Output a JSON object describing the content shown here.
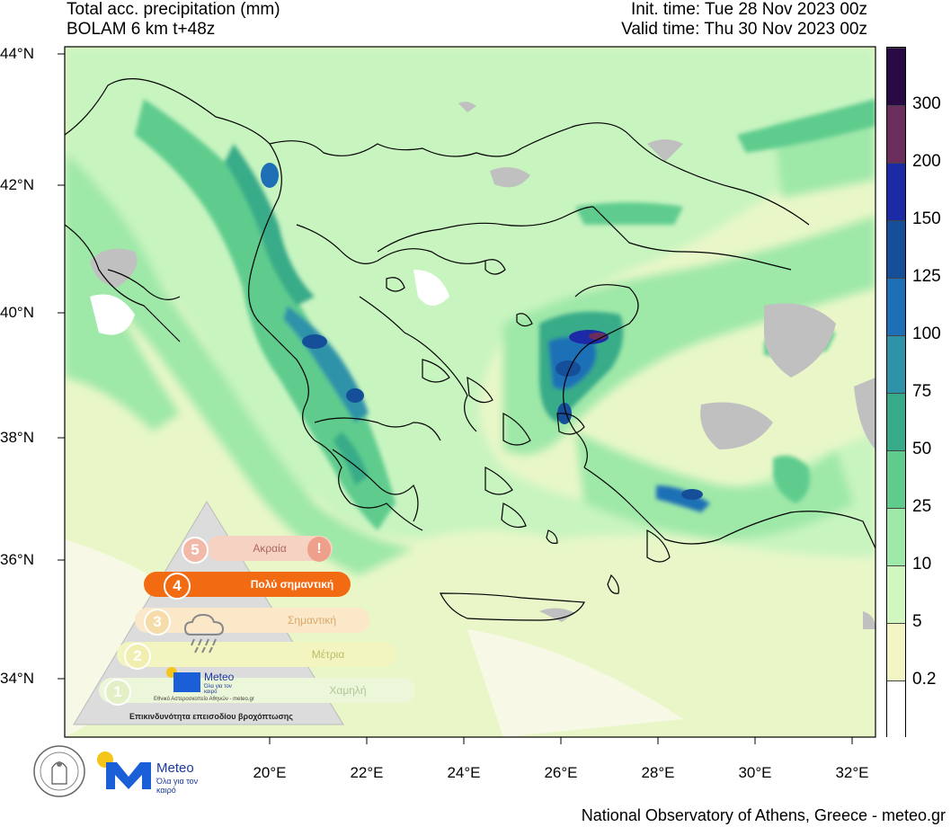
{
  "header": {
    "title_line1": "Total acc. precipitation (mm)",
    "title_line2": "BOLAM 6 km t+48z",
    "init_time": "Init. time: Tue 28 Nov 2023 00z",
    "valid_time": "Valid time: Thu 30 Nov 2023 00z"
  },
  "axes": {
    "lat_labels": [
      "44°N",
      "42°N",
      "40°N",
      "38°N",
      "36°N",
      "34°N"
    ],
    "lon_labels": [
      "20°E",
      "22°E",
      "24°E",
      "26°E",
      "28°E",
      "30°E",
      "32°E"
    ]
  },
  "colorbar": {
    "labels": [
      "0.2",
      "5",
      "10",
      "25",
      "50",
      "75",
      "100",
      "125",
      "150",
      "200",
      "300"
    ],
    "colors": [
      "#ffffff",
      "#f2f5c4",
      "#d2f6c0",
      "#9ee8a8",
      "#5fcc8e",
      "#37ab88",
      "#2e92a8",
      "#1e6fb6",
      "#164f99",
      "#1c2aa6",
      "#6b2e5c",
      "#2a0a45"
    ]
  },
  "map_colors": {
    "sea": "#e9f7c8",
    "land_light": "#c8f4c0",
    "no_data_gray": "#c0c0c0"
  },
  "warning_pyramid": {
    "levels": [
      {
        "num": "5",
        "label": "Ακραία"
      },
      {
        "num": "4",
        "label": "Πολύ σημαντική"
      },
      {
        "num": "3",
        "label": "Σημαντική"
      },
      {
        "num": "2",
        "label": "Μέτρια"
      },
      {
        "num": "1",
        "label": "Χαμηλή"
      }
    ],
    "active_level": "4",
    "brand": "Meteo",
    "tagline": "Όλα για τον καιρό",
    "institute_line": "Εθνικό Αστεροσκοπείο Αθηνών - meteo.gr",
    "caption": "Επικινδυνότητα επεισοδίου βροχόπτωσης"
  },
  "logos": {
    "brand": "Meteo",
    "tagline": "Όλα για τον καιρό"
  },
  "footer": {
    "credit": "National Observatory of Athens, Greece - meteo.gr"
  }
}
